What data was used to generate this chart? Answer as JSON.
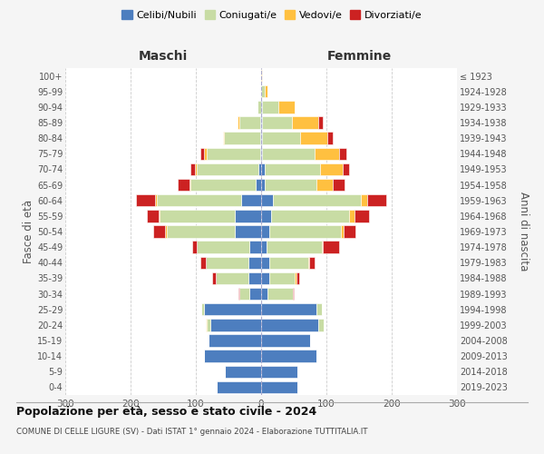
{
  "age_groups": [
    "0-4",
    "5-9",
    "10-14",
    "15-19",
    "20-24",
    "25-29",
    "30-34",
    "35-39",
    "40-44",
    "45-49",
    "50-54",
    "55-59",
    "60-64",
    "65-69",
    "70-74",
    "75-79",
    "80-84",
    "85-89",
    "90-94",
    "95-99",
    "100+"
  ],
  "birth_years": [
    "2019-2023",
    "2014-2018",
    "2009-2013",
    "2004-2008",
    "1999-2003",
    "1994-1998",
    "1989-1993",
    "1984-1988",
    "1979-1983",
    "1974-1978",
    "1969-1973",
    "1964-1968",
    "1959-1963",
    "1954-1958",
    "1949-1953",
    "1944-1948",
    "1939-1943",
    "1934-1938",
    "1929-1933",
    "1924-1928",
    "≤ 1923"
  ],
  "males": {
    "celibi": [
      68,
      55,
      88,
      80,
      78,
      88,
      18,
      20,
      20,
      18,
      40,
      40,
      30,
      8,
      4,
      2,
      2,
      2,
      0,
      0,
      0
    ],
    "coniugati": [
      0,
      0,
      0,
      0,
      5,
      4,
      15,
      50,
      65,
      80,
      105,
      115,
      130,
      100,
      95,
      82,
      55,
      32,
      5,
      0,
      0
    ],
    "vedovi": [
      0,
      0,
      0,
      0,
      2,
      0,
      0,
      0,
      0,
      0,
      2,
      2,
      2,
      2,
      2,
      4,
      2,
      2,
      0,
      0,
      0
    ],
    "divorziati": [
      0,
      0,
      0,
      0,
      0,
      0,
      2,
      5,
      8,
      8,
      18,
      18,
      30,
      18,
      8,
      5,
      0,
      0,
      0,
      0,
      0
    ]
  },
  "females": {
    "nubili": [
      55,
      55,
      85,
      75,
      88,
      85,
      10,
      12,
      12,
      8,
      12,
      15,
      18,
      5,
      5,
      2,
      2,
      2,
      2,
      0,
      0
    ],
    "coniugate": [
      0,
      0,
      0,
      0,
      8,
      8,
      38,
      40,
      60,
      85,
      110,
      120,
      135,
      80,
      85,
      80,
      58,
      45,
      25,
      5,
      0
    ],
    "vedove": [
      0,
      0,
      0,
      0,
      0,
      0,
      0,
      2,
      2,
      2,
      5,
      8,
      10,
      25,
      35,
      38,
      42,
      40,
      25,
      5,
      2
    ],
    "divorziate": [
      0,
      0,
      0,
      0,
      0,
      0,
      2,
      4,
      8,
      25,
      18,
      22,
      28,
      18,
      10,
      10,
      8,
      8,
      0,
      0,
      0
    ]
  },
  "colors": {
    "celibi": "#4d7ebf",
    "coniugati": "#c8dca4",
    "vedovi": "#ffc040",
    "divorziati": "#cc2222"
  },
  "xlim": 300,
  "title": "Popolazione per età, sesso e stato civile - 2024",
  "subtitle": "COMUNE DI CELLE LIGURE (SV) - Dati ISTAT 1° gennaio 2024 - Elaborazione TUTTITALIA.IT",
  "ylabel_left": "Fasce di età",
  "ylabel_right": "Anni di nascita",
  "xlabel_left": "Maschi",
  "xlabel_right": "Femmine",
  "bg_color": "#f5f5f5",
  "plot_bg": "#ffffff",
  "grid_color": "#cccccc"
}
